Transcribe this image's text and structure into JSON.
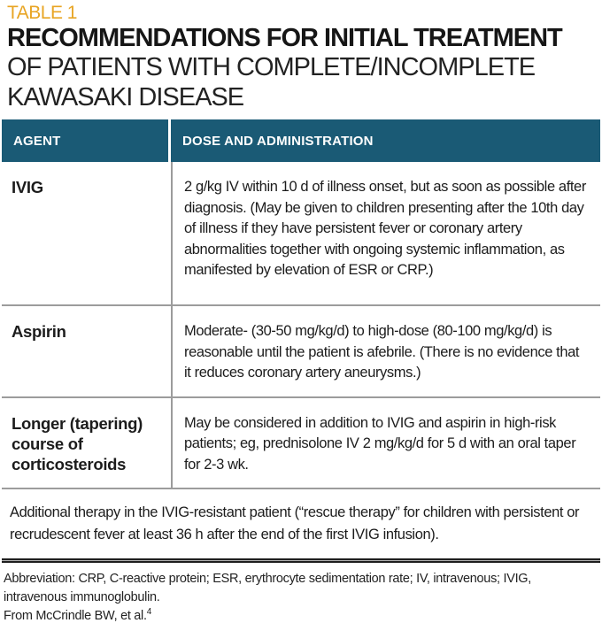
{
  "colors": {
    "teal": "#1A5A75",
    "gold": "#E8A524",
    "rule_gray": "#9C9C9C",
    "text": "#1C1C1C"
  },
  "table_label": "TABLE 1",
  "title": {
    "bold": "RECOMMENDATIONS FOR INITIAL TREATMENT",
    "regular": " OF PATIENTS WITH COMPLETE/INCOMPLETE KAWASAKI DISEASE"
  },
  "table": {
    "headers": [
      "AGENT",
      "DOSE AND ADMINISTRATION"
    ],
    "rows": [
      {
        "agent": "IVIG",
        "dose": "2 g/kg IV within 10 d of illness onset, but as soon as possible after diagnosis. (May be given to children presenting after the 10th day of illness if they have persistent fever or coronary artery abnormalities together with ongoing systemic inflammation, as manifested by elevation of ESR or CRP.)"
      },
      {
        "agent": "Aspirin",
        "dose": "Moderate- (30-50 mg/kg/d) to high-dose (80-100 mg/kg/d) is reasonable until the patient is afebrile. (There is no evidence that it reduces coronary artery aneurysms.)"
      },
      {
        "agent": "Longer (tapering) course of corticosteroids",
        "dose": "May be considered in addition to IVIG and aspirin in high-risk patients; eg, prednisolone IV 2 mg/kg/d for 5 d with an oral taper for 2-3 wk."
      }
    ],
    "footnote": "Additional therapy in the IVIG-resistant patient (“rescue therapy” for children with persistent or recrudescent fever at least 36 h after the end of the first IVIG infusion)."
  },
  "footer": {
    "abbreviations": "Abbreviation: CRP, C-reactive protein; ESR, erythrocyte sedimentation rate; IV, intravenous; IVIG, intravenous immunoglobulin.",
    "source": "From McCrindle BW, et al.",
    "source_superscript": "4"
  }
}
